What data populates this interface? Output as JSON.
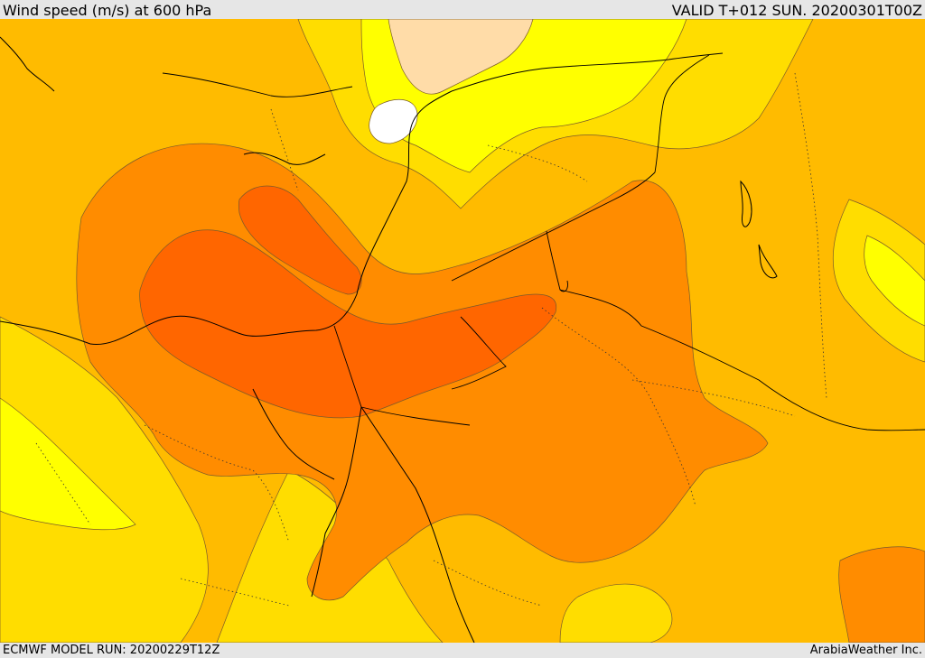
{
  "header": {
    "title": "Wind speed (m/s) at 600 hPa",
    "valid": "VALID T+012 SUN. 20200301T00Z"
  },
  "footer": {
    "model_run": "ECMWF MODEL RUN: 20200229T12Z",
    "credit": "ArabiaWeather Inc."
  },
  "colors": {
    "very_light": "#ffffff",
    "pale": "#ffdca8",
    "yellow": "#ffff00",
    "light_gold": "#ffdd00",
    "gold": "#ffbb00",
    "orange": "#ff8c00",
    "dark_orange": "#ff6600",
    "contour_line": "#7a5a2a",
    "coastline": "#000000"
  }
}
